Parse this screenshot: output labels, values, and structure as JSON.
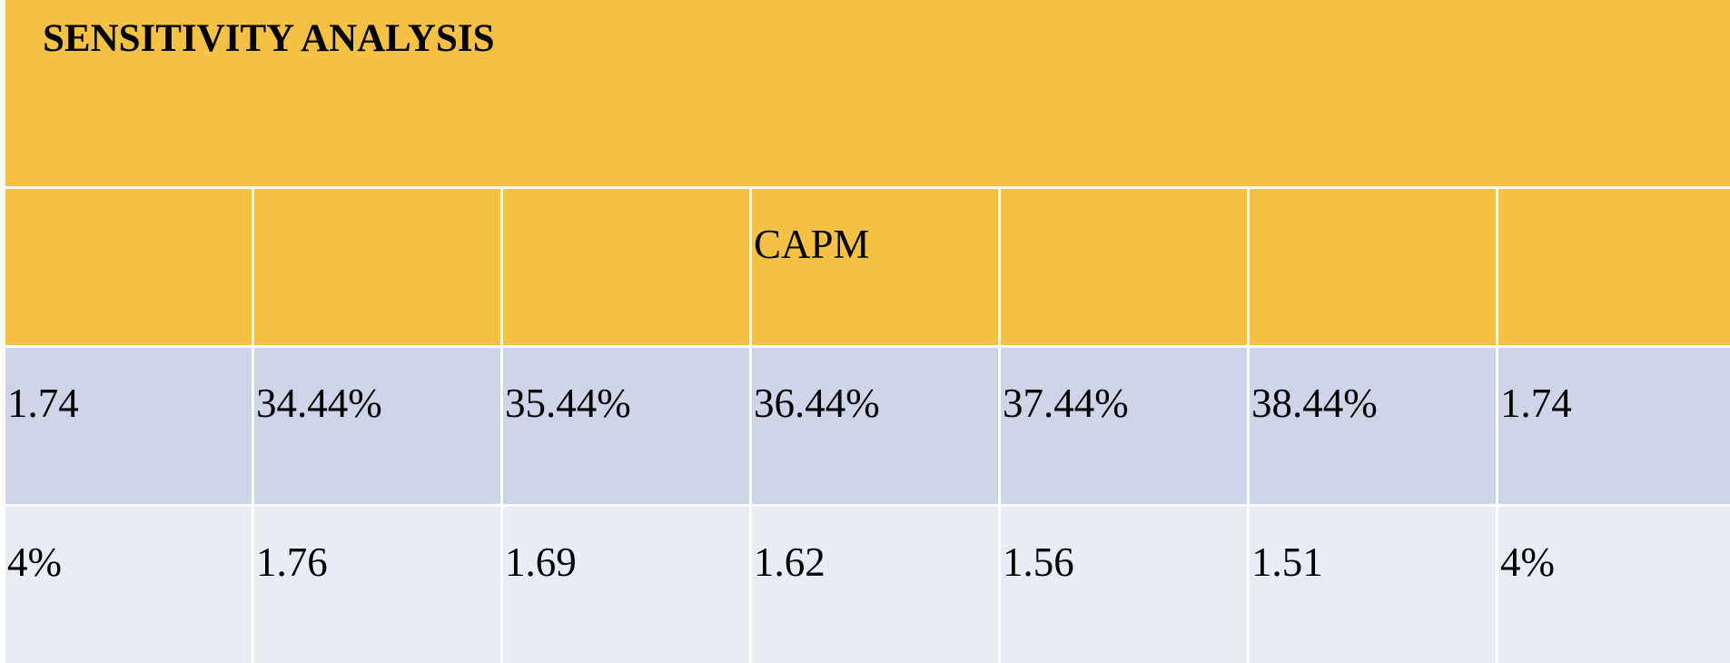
{
  "title": "SENSITIVITY ANALYSIS",
  "table": {
    "header_row": [
      "",
      "",
      "",
      "CAPM",
      "",
      "",
      ""
    ],
    "rows": [
      [
        "1.74",
        "34.44%",
        "35.44%",
        "36.44%",
        "37.44%",
        "38.44%",
        "1.74"
      ],
      [
        "4%",
        "1.76",
        "1.69",
        "1.62",
        "1.56",
        "1.51",
        "4%"
      ]
    ]
  },
  "colors": {
    "header_fill": "#F5C142",
    "row_dark": "#CFD5E7",
    "row_light": "#E9ECF4",
    "grid_line": "#FFFFFF"
  }
}
